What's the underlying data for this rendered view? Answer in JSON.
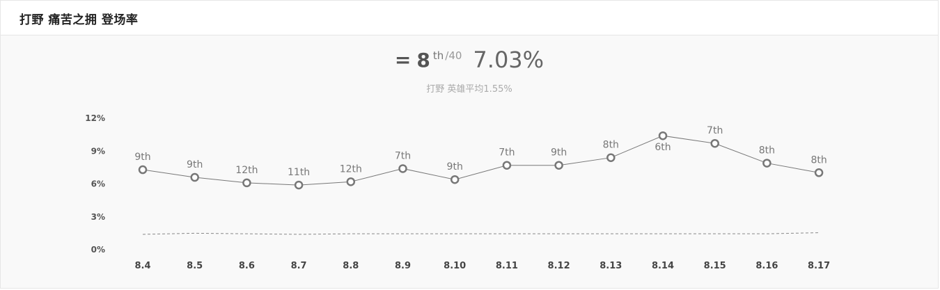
{
  "header": {
    "title": "打野 痛苦之拥 登场率"
  },
  "summary": {
    "trend_symbol": "=",
    "rank": "8",
    "rank_suffix": "th",
    "rank_total": "/40",
    "rate": "7.03%",
    "avg_text": "打野 英雄平均1.55%"
  },
  "colors": {
    "line": "#777777",
    "marker_stroke": "#777777",
    "marker_fill": "#ffffff",
    "avg_line": "#888888"
  },
  "chart_data": {
    "type": "line",
    "categories": [
      "8.4",
      "8.5",
      "8.6",
      "8.7",
      "8.8",
      "8.9",
      "8.10",
      "8.11",
      "8.12",
      "8.13",
      "8.14",
      "8.15",
      "8.16",
      "8.17"
    ],
    "series": [
      {
        "values": [
          7.3,
          6.6,
          6.1,
          5.9,
          6.2,
          7.4,
          6.4,
          7.7,
          7.7,
          8.4,
          10.4,
          9.7,
          7.9,
          7.03
        ],
        "data_labels": [
          "9th",
          "9th",
          "12th",
          "11th",
          "12th",
          "7th",
          "9th",
          "7th",
          "9th",
          "8th",
          "6th",
          "7th",
          "8th",
          "8th"
        ]
      },
      {
        "style": "dashed",
        "values": [
          1.4,
          1.5,
          1.45,
          1.4,
          1.45,
          1.45,
          1.45,
          1.45,
          1.45,
          1.45,
          1.45,
          1.45,
          1.45,
          1.55
        ]
      }
    ],
    "y_ticks": [
      "0%",
      "3%",
      "6%",
      "9%",
      "12%"
    ],
    "ylim": [
      0,
      12
    ],
    "xlabel": "",
    "ylabel": "",
    "grid": false,
    "legend": "none"
  }
}
